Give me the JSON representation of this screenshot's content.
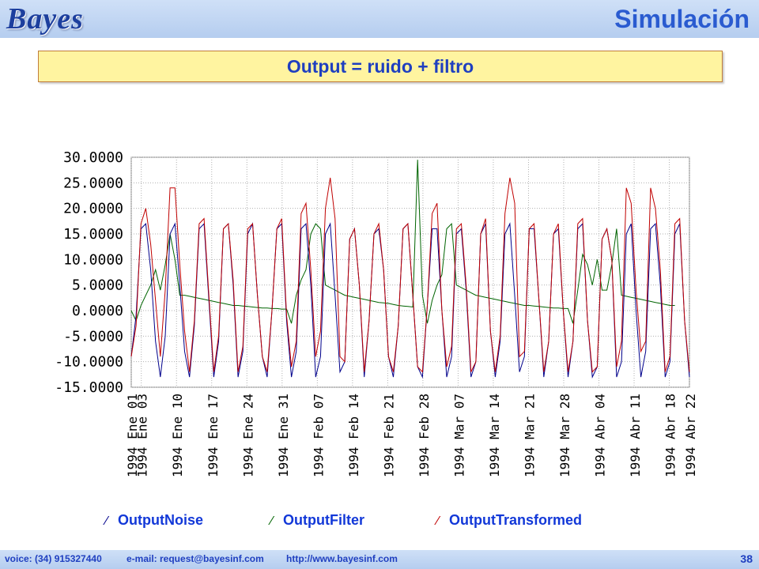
{
  "header": {
    "logo_text": "Bayes",
    "title": "Simulación"
  },
  "subtitle": "Output = ruido + filtro",
  "footer": {
    "voice": "voice: (34) 915327440",
    "email": "e-mail: request@bayesinf.com",
    "web": "http://www.bayesinf.com",
    "page": "38"
  },
  "colors": {
    "noise": "#00008b",
    "filter": "#006400",
    "transformed": "#c00000",
    "header_bg": "#c3d6f3",
    "title": "#2a5bd0"
  },
  "chart_data": {
    "type": "line",
    "ylim": [
      -15,
      30
    ],
    "y_ticks": [
      "30.0000",
      "25.0000",
      "20.0000",
      "15.0000",
      "10.0000",
      "5.0000",
      "0.0000",
      "-5.0000",
      "-10.0000",
      "-15.0000"
    ],
    "x_tick_labels": [
      "1994 Ene 01",
      "1994 Ene 03",
      "1994 Ene 10",
      "1994 Ene 17",
      "1994 Ene 24",
      "1994 Ene 31",
      "1994 Feb 07",
      "1994 Feb 14",
      "1994 Feb 21",
      "1994 Feb 28",
      "1994 Mar 07",
      "1994 Mar 14",
      "1994 Mar 21",
      "1994 Mar 28",
      "1994 Abr 04",
      "1994 Abr 11",
      "1994 Abr 18",
      "1994 Abr 22"
    ],
    "x_tick_days": [
      0,
      2,
      9,
      16,
      23,
      30,
      37,
      44,
      51,
      58,
      65,
      72,
      79,
      86,
      93,
      100,
      107,
      111
    ],
    "grid": true,
    "legend_position": "bottom",
    "series": [
      {
        "name": "OutputNoise",
        "values": [
          -9,
          -1,
          16,
          17,
          8,
          -6,
          -13,
          -5,
          15,
          17,
          5,
          -8,
          -13,
          -3,
          16,
          17,
          2,
          -13,
          -6,
          16,
          17,
          5,
          -13,
          -8,
          15,
          17,
          3,
          -9,
          -13,
          0,
          16,
          17,
          -2,
          -13,
          -8,
          16,
          17,
          5,
          -13,
          -9,
          15,
          17,
          3,
          -12,
          -10,
          14,
          16,
          5,
          -13,
          -2,
          15,
          16,
          8,
          -9,
          -13,
          -3,
          16,
          17,
          3,
          -11,
          -13,
          1,
          16,
          16,
          0,
          -13,
          -9,
          15,
          16,
          4,
          -13,
          -10,
          15,
          17,
          -4,
          -13,
          -6,
          15,
          17,
          3,
          -12,
          -9,
          16,
          16,
          2,
          -13,
          -6,
          15,
          16,
          0,
          -13,
          -6,
          16,
          17,
          -2,
          -13,
          -11,
          14,
          16,
          10,
          -13,
          -10,
          15,
          17,
          0,
          -13,
          -8,
          16,
          17,
          5,
          -13,
          -10,
          15,
          17,
          -2,
          -13
        ]
      },
      {
        "name": "OutputFilter",
        "values": [
          0,
          -2,
          1,
          3,
          5,
          8,
          4,
          9,
          15,
          10,
          3,
          3,
          2.8,
          2.6,
          2.4,
          2.2,
          2,
          1.8,
          1.6,
          1.4,
          1.2,
          1,
          1,
          0.9,
          0.8,
          0.7,
          0.6,
          0.5,
          0.5,
          0.4,
          0.4,
          0.3,
          0.3,
          -2.5,
          3,
          6,
          8,
          15,
          17,
          16,
          5,
          4.5,
          4,
          3.5,
          3,
          2.8,
          2.6,
          2.4,
          2.2,
          2,
          1.8,
          1.6,
          1.5,
          1.4,
          1.2,
          1,
          0.9,
          0.8,
          0.7,
          29.5,
          3,
          -2.5,
          2,
          5,
          7,
          16,
          17,
          5,
          4.5,
          4,
          3.5,
          3,
          2.8,
          2.6,
          2.4,
          2.2,
          2,
          1.8,
          1.6,
          1.4,
          1.2,
          1,
          1,
          0.9,
          0.8,
          0.7,
          0.6,
          0.5,
          0.5,
          0.4,
          0.4,
          -2.5,
          4,
          11,
          9,
          5,
          10,
          4,
          4,
          9,
          16,
          3,
          2.8,
          2.6,
          2.4,
          2.2,
          2,
          1.8,
          1.6,
          1.4,
          1.2,
          1,
          1
        ]
      },
      {
        "name": "OutputTransformed",
        "values": [
          -9,
          -3,
          17,
          20,
          13,
          2,
          -9,
          4,
          24,
          24,
          9,
          -4,
          -12,
          -2,
          17,
          18,
          3,
          -12,
          -5,
          16,
          17,
          6,
          -12,
          -7,
          16,
          17,
          3,
          -9,
          -12,
          0,
          16,
          18,
          -1,
          -11,
          -6,
          19,
          21,
          8,
          -9,
          -4,
          20,
          26,
          18,
          -9,
          -10,
          14,
          16,
          5,
          -12,
          -2,
          15,
          17,
          8,
          -9,
          -12,
          -3,
          16,
          17,
          3,
          -11,
          -12,
          1,
          19,
          21,
          0,
          -11,
          -7,
          16,
          17,
          5,
          -12,
          -10,
          15,
          18,
          -4,
          -12,
          -5,
          19,
          26,
          21,
          -9,
          -8,
          16,
          17,
          2,
          -12,
          -6,
          15,
          17,
          0,
          -12,
          -6,
          17,
          18,
          -2,
          -12,
          -11,
          14,
          16,
          10,
          -11,
          -6,
          24,
          21,
          4,
          -8,
          -6,
          24,
          20,
          8,
          -12,
          -9,
          17,
          18,
          -2,
          -12
        ]
      }
    ]
  }
}
